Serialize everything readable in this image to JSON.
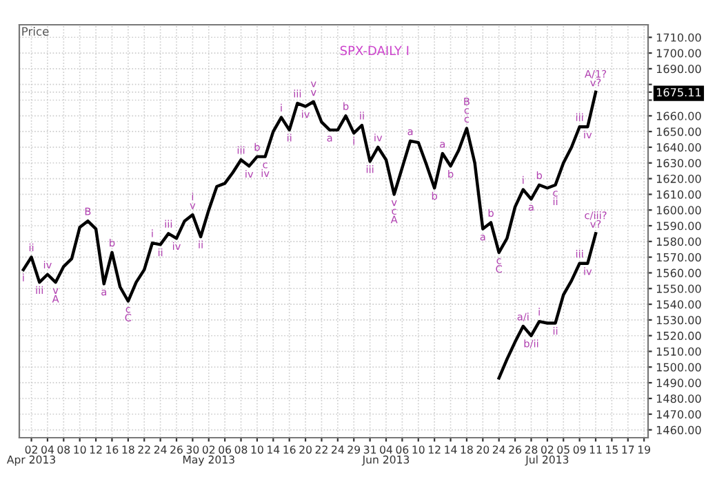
{
  "chart_data": {
    "type": "line",
    "title": "SPX-DAILY I",
    "ylabel": "Price",
    "categories": [
      null,
      "02\nApr 2013",
      null,
      "04",
      null,
      "08",
      null,
      "10",
      null,
      "12",
      null,
      "16",
      null,
      "18",
      null,
      "22",
      null,
      "24",
      null,
      "26",
      null,
      "30",
      null,
      "02\nMay 2013",
      null,
      "06",
      null,
      "08",
      null,
      "10",
      null,
      "14",
      null,
      "16",
      null,
      "20",
      null,
      "22",
      null,
      "24",
      null,
      "29",
      null,
      "31",
      null,
      "04\nJun 2013",
      null,
      "06",
      null,
      "10",
      null,
      "12",
      null,
      "14",
      null,
      "18",
      null,
      "20",
      null,
      "24",
      null,
      "26",
      null,
      "28",
      null,
      "02\nJul 2013",
      null,
      "05",
      null,
      "09",
      null,
      "11",
      null,
      "15",
      null,
      "17",
      null,
      "19"
    ],
    "series": [
      {
        "color": "#000000",
        "values": [
          1562,
          1570,
          1554,
          1559,
          1554,
          1564,
          1569,
          1589,
          1593,
          1588,
          1553,
          1573,
          1551,
          1542,
          1554,
          1562,
          1579,
          1578,
          1585,
          1582,
          1593,
          1597,
          1583,
          1600,
          1615,
          1617,
          1624,
          1632,
          1628,
          1634,
          1634,
          1650,
          1659,
          1651,
          1668,
          1666,
          1669,
          1656,
          1651,
          1651,
          1660,
          1649,
          1654,
          1631,
          1640,
          1632,
          1610,
          1627,
          1644,
          1643,
          1629,
          1614,
          1636,
          1628,
          1638,
          1652,
          1630,
          1588,
          1592,
          1573,
          1582,
          1602,
          1613,
          1607,
          1616,
          1614,
          1616,
          1630,
          1640,
          1653,
          1653,
          1675.11,
          null,
          null,
          null,
          null,
          null,
          null
        ],
        "value_labels": [
          "i",
          "ii",
          "iii",
          "iv",
          "v\nA",
          null,
          null,
          null,
          "B",
          null,
          "a",
          "b",
          null,
          "c\nC",
          null,
          null,
          "i",
          "ii",
          "iii",
          "iv",
          null,
          "i\nv",
          "ii",
          null,
          null,
          null,
          null,
          "iii",
          "iv",
          "b",
          "c\niv",
          null,
          "i",
          "ii",
          "iii",
          "iv",
          "v\nv",
          null,
          "a",
          null,
          "b",
          "i",
          "ii",
          "iii",
          "iv",
          null,
          "v\nc\nA",
          null,
          "a",
          null,
          null,
          "b",
          "a",
          "b",
          null,
          "B\nc\nc",
          null,
          "a",
          "b",
          "c\nC",
          null,
          null,
          "i",
          "a",
          "b",
          null,
          "c\nii",
          null,
          null,
          "iii",
          "iv",
          null,
          null,
          null,
          null,
          null,
          null,
          null
        ]
      },
      {
        "color": "#000000",
        "values": [
          null,
          null,
          null,
          null,
          null,
          null,
          null,
          null,
          null,
          null,
          null,
          null,
          null,
          null,
          null,
          null,
          null,
          null,
          null,
          null,
          null,
          null,
          null,
          null,
          null,
          null,
          null,
          null,
          null,
          null,
          null,
          null,
          null,
          null,
          null,
          null,
          null,
          null,
          null,
          null,
          null,
          null,
          null,
          null,
          null,
          null,
          null,
          null,
          null,
          null,
          null,
          null,
          null,
          null,
          null,
          null,
          null,
          null,
          null,
          1493,
          1505,
          1516,
          1526,
          1520,
          1529,
          1528,
          1528,
          1546,
          1555,
          1566,
          1566,
          1585,
          null,
          null,
          null,
          null,
          null,
          null
        ],
        "value_labels": [
          null,
          null,
          null,
          null,
          null,
          null,
          null,
          null,
          null,
          null,
          null,
          null,
          null,
          null,
          null,
          null,
          null,
          null,
          null,
          null,
          null,
          null,
          null,
          null,
          null,
          null,
          null,
          null,
          null,
          null,
          null,
          null,
          null,
          null,
          null,
          null,
          null,
          null,
          null,
          null,
          null,
          null,
          null,
          null,
          null,
          null,
          null,
          null,
          null,
          null,
          null,
          null,
          null,
          null,
          null,
          null,
          null,
          null,
          null,
          null,
          null,
          null,
          "a/i",
          "b/ii",
          "i",
          null,
          "ii",
          null,
          null,
          "iii",
          "iv",
          "c/iii?\nv?",
          null,
          null,
          null,
          null,
          null,
          null
        ]
      }
    ],
    "ylim": [
      1455,
      1718
    ],
    "yticks": [
      {
        "value": 1460,
        "label": "1460.00"
      },
      {
        "value": 1470,
        "label": "1470.00"
      },
      {
        "value": 1480,
        "label": "1480.00"
      },
      {
        "value": 1490,
        "label": "1490.00"
      },
      {
        "value": 1500,
        "label": "1500.00"
      },
      {
        "value": 1510,
        "label": "1510.00"
      },
      {
        "value": 1520,
        "label": "1520.00"
      },
      {
        "value": 1530,
        "label": "1530.00"
      },
      {
        "value": 1540,
        "label": "1540.00"
      },
      {
        "value": 1550,
        "label": "1550.00"
      },
      {
        "value": 1560,
        "label": "1560.00"
      },
      {
        "value": 1570,
        "label": "1570.00"
      },
      {
        "value": 1580,
        "label": "1580.00"
      },
      {
        "value": 1590,
        "label": "1590.00"
      },
      {
        "value": 1600,
        "label": "1600.00"
      },
      {
        "value": 1610,
        "label": "1610.00"
      },
      {
        "value": 1620,
        "label": "1620.00"
      },
      {
        "value": 1630,
        "label": "1630.00"
      },
      {
        "value": 1640,
        "label": "1640.00"
      },
      {
        "value": 1650,
        "label": "1650.00"
      },
      {
        "value": 1660,
        "label": "1660.00"
      },
      {
        "value": 1670,
        "label": null
      },
      {
        "value": 1675.11,
        "label": "1675.11"
      },
      {
        "value": 1680,
        "label": null
      },
      {
        "value": 1690,
        "label": "1690.00"
      },
      {
        "value": 1700,
        "label": "1700.00"
      },
      {
        "value": 1710,
        "label": "1710.00"
      }
    ],
    "annotations": [
      {
        "text": "A/1?\nv?",
        "x": "11",
        "y": 1675.11
      }
    ],
    "grid": true,
    "line_style": "solid"
  }
}
